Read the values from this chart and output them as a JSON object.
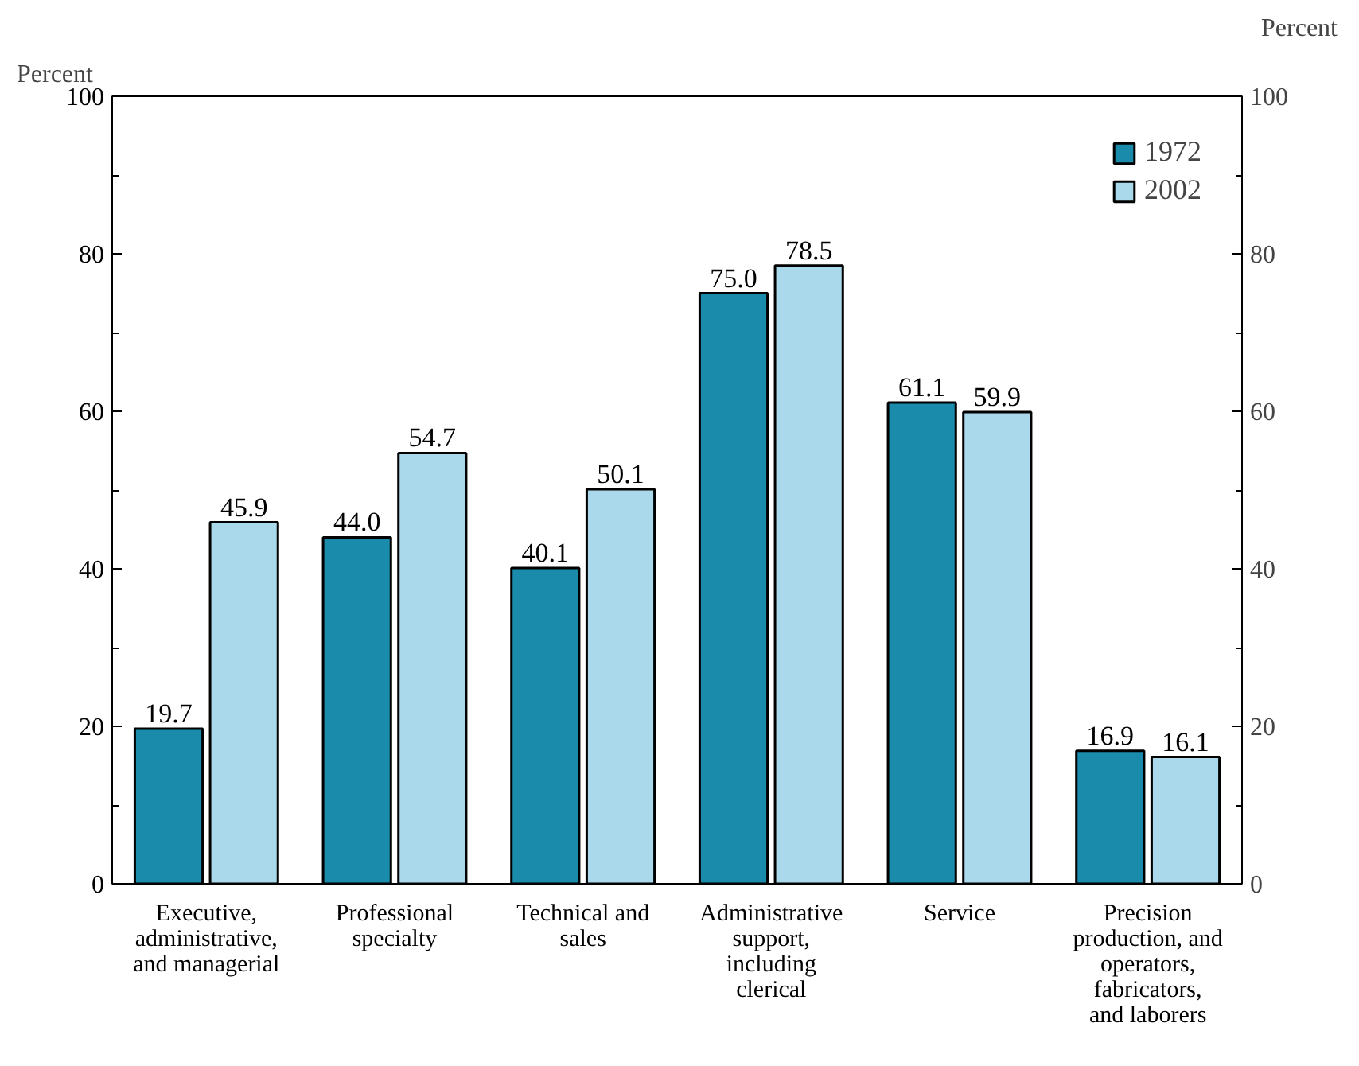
{
  "chart_data": {
    "type": "bar",
    "ylabel": "Percent",
    "y2label": "Percent",
    "categories": [
      "Executive, administrative, and managerial",
      "Professional specialty",
      "Technical and sales",
      "Administrative support, including clerical",
      "Service",
      "Precision production, and operators, fabricators, and laborers"
    ],
    "series": [
      {
        "name": "1972",
        "color": "#1b8bab",
        "values": [
          19.7,
          44.0,
          40.1,
          75.0,
          61.1,
          16.9
        ],
        "value_labels": [
          "19.7",
          "44.0",
          "40.1",
          "75.0",
          "61.1",
          "16.9"
        ]
      },
      {
        "name": "2002",
        "color": "#a9d9ea",
        "values": [
          45.9,
          54.7,
          50.1,
          78.5,
          59.9,
          16.1
        ],
        "value_labels": [
          "45.9",
          "54.7",
          "50.1",
          "78.5",
          "59.9",
          "16.1"
        ]
      }
    ],
    "ylim": [
      0,
      100
    ],
    "yticks": [
      0,
      20,
      40,
      60,
      80,
      100
    ],
    "y2lim": [
      0,
      100
    ],
    "y2ticks": [
      0,
      20,
      40,
      60,
      80,
      100
    ],
    "grid": false,
    "legend": "top right"
  }
}
